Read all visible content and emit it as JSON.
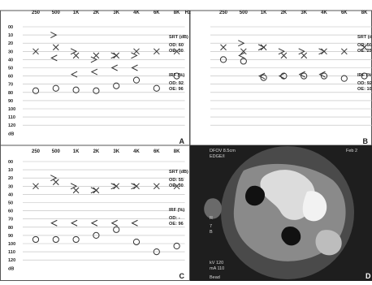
{
  "freq_labels": [
    "250",
    "500",
    "1K",
    "2K",
    "3K",
    "4K",
    "6K",
    "8K"
  ],
  "hz_label": "Hz",
  "db_labels": [
    "00",
    "10",
    "20",
    "30",
    "40",
    "50",
    "60",
    "70",
    "80",
    "90",
    "100",
    "110",
    "120"
  ],
  "db_unit": "dB",
  "panels": [
    {
      "id": "A",
      "letter": "A",
      "srt_label": "SRT (dB)",
      "srt_lines": [
        "OD: 60",
        "OE: 30"
      ],
      "irf_label": "IRF (%)",
      "irf_lines": [
        "OD: 92",
        "OE: 96"
      ],
      "left_air_x_db": [
        30,
        25,
        35,
        35,
        35,
        30,
        30,
        30
      ],
      "left_bone_db": [
        null,
        10,
        30,
        40,
        35,
        35,
        null,
        null
      ],
      "right_bone_db": [
        null,
        38,
        58,
        55,
        50,
        50,
        null,
        null
      ],
      "right_air_o_db": [
        78,
        75,
        77,
        78,
        72,
        65,
        75,
        60
      ]
    },
    {
      "id": "B",
      "letter": "B",
      "srt_label": "SRT (dB",
      "srt_lines": [
        "OD: 50",
        "OE: 25"
      ],
      "irf_label": "IRF (%",
      "irf_lines": [
        "OD: 92",
        "OE: 10"
      ],
      "left_air_x_db": [
        25,
        30,
        25,
        35,
        35,
        30,
        30,
        25
      ],
      "left_bone_db": [
        null,
        20,
        25,
        30,
        30,
        30,
        null,
        null
      ],
      "right_bone_db": [
        null,
        35,
        60,
        60,
        58,
        58,
        null,
        null
      ],
      "right_air_o_db": [
        40,
        42,
        62,
        60,
        60,
        60,
        63,
        60
      ]
    },
    {
      "id": "C",
      "letter": "C",
      "srt_label": "SRT (dB)",
      "srt_lines": [
        "OD: 55",
        "OE: 30"
      ],
      "irf_label": "IRF (%)",
      "irf_lines": [
        "OD: -",
        "OE: 96"
      ],
      "left_air_x_db": [
        30,
        25,
        35,
        35,
        30,
        30,
        30,
        30
      ],
      "left_bone_db": [
        null,
        20,
        30,
        35,
        30,
        30,
        null,
        null
      ],
      "right_bone_db": [
        null,
        75,
        75,
        75,
        75,
        75,
        null,
        null
      ],
      "right_air_o_db": [
        95,
        95,
        95,
        90,
        83,
        98,
        110,
        103
      ]
    }
  ],
  "ct": {
    "letter": "D",
    "top_left_lines": [
      "DFOV 8.5cm",
      "EDGE/I"
    ],
    "top_right": "Feb 2",
    "side_lines": [
      "R",
      "7",
      "B"
    ],
    "bottom_lines": [
      "kV 120",
      "mA 110"
    ],
    "bottom_last": "Bead"
  }
}
